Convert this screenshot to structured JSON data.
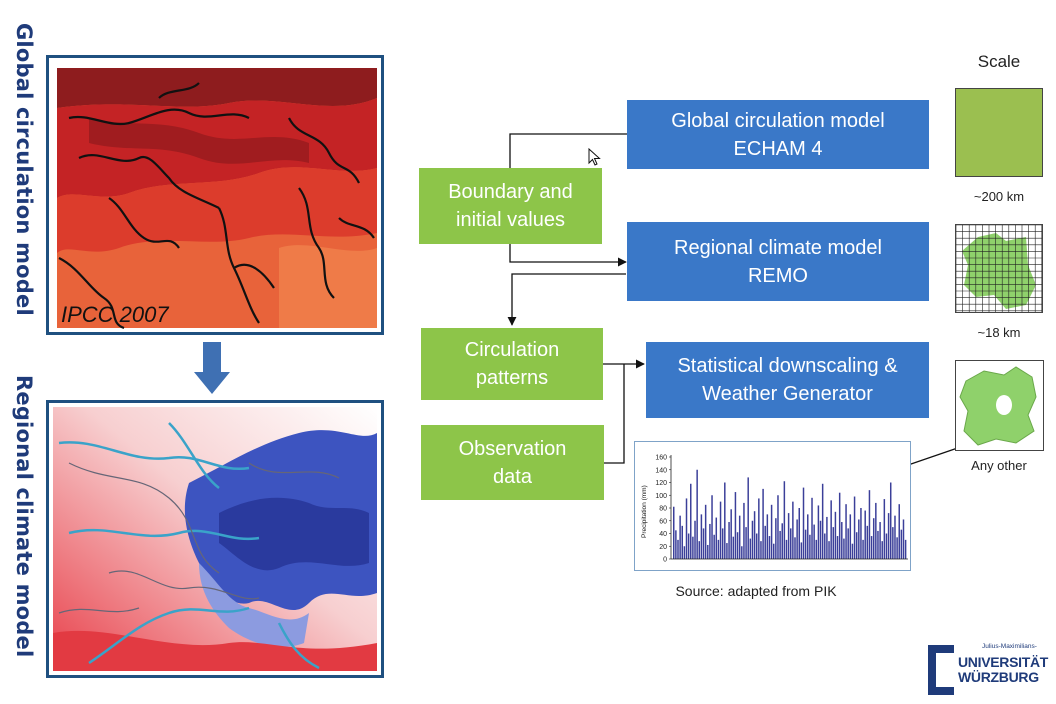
{
  "side_labels": {
    "top": "Global circulation model",
    "bottom": "Regional climate model"
  },
  "maps": {
    "global_caption": "IPCC 2007"
  },
  "boxes": {
    "boundary": "Boundary and\ninitial values",
    "gcm": "Global circulation model\nECHAM 4",
    "rcm": "Regional climate model\nREMO",
    "circulation": "Circulation\npatterns",
    "observation": "Observation\ndata",
    "downscaling": "Statistical downscaling &\nWeather Generator"
  },
  "scale": {
    "title": "Scale",
    "items": [
      {
        "label": "~200 km"
      },
      {
        "label": "~18 km"
      },
      {
        "label": "Any other"
      }
    ]
  },
  "source": "Source: adapted from PIK",
  "logo": {
    "small": "Julius-Maximilians-",
    "line1": "UNIVERSITÄT",
    "line2": "WÜRZBURG"
  },
  "colors": {
    "green": "#8dc549",
    "blue": "#3a78c8",
    "frame": "#1f5080",
    "bar": "#3b3f99"
  },
  "chart_data": {
    "type": "bar",
    "ylabel": "Precipitation (mm)",
    "ylim": [
      0,
      160
    ],
    "yticks": [
      0,
      20,
      40,
      60,
      80,
      100,
      120,
      140,
      160
    ],
    "values": [
      82,
      45,
      30,
      68,
      52,
      20,
      95,
      40,
      118,
      35,
      60,
      140,
      28,
      70,
      48,
      85,
      22,
      55,
      100,
      38,
      65,
      30,
      90,
      48,
      120,
      25,
      58,
      78,
      35,
      105,
      42,
      68,
      20,
      88,
      50,
      128,
      32,
      60,
      75,
      40,
      95,
      28,
      110,
      52,
      70,
      36,
      85,
      24,
      64,
      100,
      44,
      56,
      122,
      30,
      72,
      48,
      90,
      34,
      62,
      80,
      26,
      112,
      46,
      70,
      38,
      96,
      54,
      30,
      84,
      60,
      118,
      40,
      66,
      28,
      92,
      50,
      74,
      36,
      104,
      58,
      32,
      86,
      48,
      70,
      24,
      98,
      42,
      62,
      80,
      30,
      76,
      52,
      108,
      36,
      64,
      88,
      44,
      58,
      28,
      94,
      40,
      72,
      120,
      50,
      68,
      34,
      86,
      46,
      62,
      30
    ]
  }
}
